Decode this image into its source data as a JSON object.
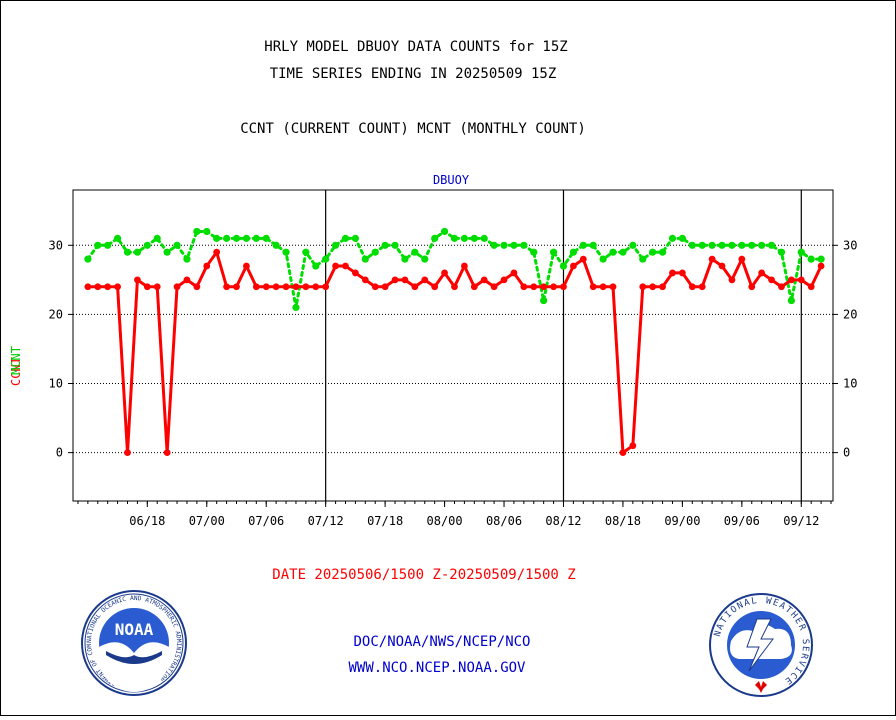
{
  "header": {
    "title_line1": "HRLY MODEL DBUOY DATA COUNTS for 15Z",
    "title_line2": "TIME SERIES ENDING IN 20250509 15Z",
    "subtitle": "CCNT (CURRENT COUNT) MCNT (MONTHLY COUNT)"
  },
  "footer": {
    "date_range": "DATE 20250506/1500 Z-20250509/1500 Z",
    "org_path": "DOC/NOAA/NWS/NCEP/NCO",
    "website": "WWW.NCO.NCEP.NOAA.GOV"
  },
  "logos": {
    "left_text": "NOAA",
    "left_ring": "NATIONAL OCEANIC AND ATMOSPHERIC ADMINISTRATION · U.S. DEPARTMENT OF COMMERCE",
    "right_ring": "NATIONAL WEATHER SERVICE"
  },
  "colors": {
    "ccnt": "#ff0000",
    "mcnt": "#00dd00",
    "plot_label": "#0000cc",
    "footer_date": "#ff0000",
    "footer_links": "#0000cc"
  },
  "chart_data": {
    "type": "line",
    "title": "DBUOY",
    "ylabel_ccnt": "CCNT",
    "ylabel_mcnt": "MCNT",
    "ylim": [
      -7,
      38
    ],
    "yticks": [
      0,
      10,
      20,
      30
    ],
    "grid": true,
    "x_tick_labels": [
      "06/18",
      "07/00",
      "07/06",
      "07/12",
      "07/18",
      "08/00",
      "08/06",
      "08/12",
      "08/18",
      "09/00",
      "09/06",
      "09/12"
    ],
    "day_boundaries": [
      "07/12",
      "08/12",
      "09/12"
    ],
    "x_hours": [
      12,
      13,
      14,
      15,
      16,
      17,
      18,
      19,
      20,
      21,
      22,
      23,
      24,
      25,
      26,
      27,
      28,
      29,
      30,
      31,
      32,
      33,
      34,
      35,
      36,
      37,
      38,
      39,
      40,
      41,
      42,
      43,
      44,
      45,
      46,
      47,
      48,
      49,
      50,
      51,
      52,
      53,
      54,
      55,
      56,
      57,
      58,
      59,
      60,
      61,
      62,
      63,
      64,
      65,
      66,
      67,
      68,
      69,
      70,
      71,
      72,
      73,
      74,
      75,
      76,
      77,
      78,
      79,
      80,
      81,
      82,
      83,
      84,
      85,
      86
    ],
    "series": [
      {
        "name": "CCNT",
        "values": [
          24,
          24,
          24,
          24,
          0,
          25,
          24,
          24,
          0,
          24,
          25,
          24,
          27,
          29,
          24,
          24,
          27,
          24,
          24,
          24,
          24,
          24,
          24,
          24,
          24,
          27,
          27,
          26,
          25,
          24,
          24,
          25,
          25,
          24,
          25,
          24,
          26,
          24,
          27,
          24,
          25,
          24,
          25,
          26,
          24,
          24,
          24,
          24,
          24,
          27,
          28,
          24,
          24,
          24,
          0,
          1,
          24,
          24,
          24,
          26,
          26,
          24,
          24,
          28,
          27,
          25,
          28,
          24,
          26,
          25,
          24,
          25,
          25,
          24,
          27
        ]
      },
      {
        "name": "MCNT",
        "values": [
          28,
          30,
          30,
          31,
          29,
          29,
          30,
          31,
          29,
          30,
          28,
          32,
          32,
          31,
          31,
          31,
          31,
          31,
          31,
          30,
          29,
          21,
          29,
          27,
          28,
          30,
          31,
          31,
          28,
          29,
          30,
          30,
          28,
          29,
          28,
          31,
          32,
          31,
          31,
          31,
          31,
          30,
          30,
          30,
          30,
          29,
          22,
          29,
          27,
          29,
          30,
          30,
          28,
          29,
          29,
          30,
          28,
          29,
          29,
          31,
          31,
          30,
          30,
          30,
          30,
          30,
          30,
          30,
          30,
          30,
          29,
          22,
          29,
          28,
          28
        ]
      }
    ]
  }
}
